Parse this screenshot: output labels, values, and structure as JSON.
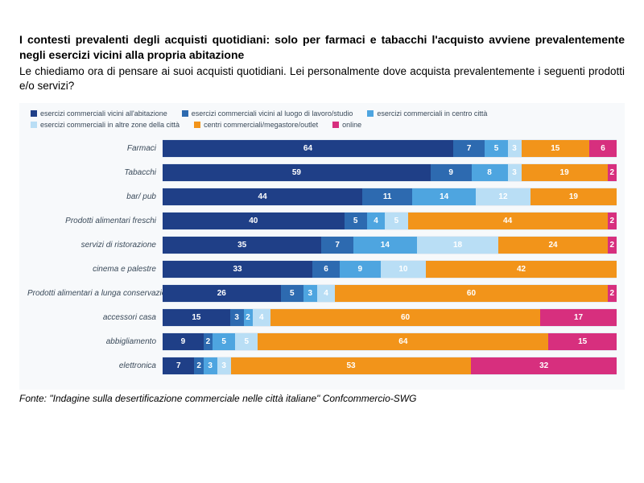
{
  "title": "I contesti prevalenti degli acquisti quotidiani: solo per farmaci e tabacchi l'acquisto avviene prevalentemente negli esercizi vicini alla propria abitazione",
  "subtitle": "Le chiediamo ora di pensare ai suoi acquisti quotidiani. Lei personalmente dove acquista prevalentemente i seguenti prodotti e/o servizi?",
  "source": "Fonte: \"Indagine sulla desertificazione commerciale nelle città italiane\" Confcommercio-SWG",
  "chart": {
    "type": "stacked-horizontal-bar",
    "background_color": "#f7f9fb",
    "grid_color": "#e5ecf3",
    "max_total": 100,
    "label_color": "#3a4a5a",
    "label_fontsize": 10,
    "value_fontsize": 10,
    "value_color": "#ffffff",
    "min_label_value": 2,
    "series": [
      {
        "key": "s1",
        "label": "esercizi commerciali vicini all'abitazione",
        "color": "#1f3f87"
      },
      {
        "key": "s2",
        "label": "esercizi commerciali vicini al luogo di lavoro/studio",
        "color": "#2d6ab0"
      },
      {
        "key": "s3",
        "label": "esercizi commerciali in centro città",
        "color": "#4ea5e0"
      },
      {
        "key": "s4",
        "label": "esercizi commerciali in altre zone della città",
        "color": "#b9def5"
      },
      {
        "key": "s5",
        "label": "centri commerciali/megastore/outlet",
        "color": "#f2941a"
      },
      {
        "key": "s6",
        "label": "online",
        "color": "#d72f7e"
      }
    ],
    "rows": [
      {
        "label": "Farmaci",
        "values": [
          64,
          7,
          5,
          3,
          15,
          6
        ]
      },
      {
        "label": "Tabacchi",
        "values": [
          59,
          9,
          8,
          3,
          19,
          2
        ]
      },
      {
        "label": "bar/ pub",
        "values": [
          44,
          11,
          14,
          12,
          19,
          0
        ]
      },
      {
        "label": "Prodotti alimentari freschi",
        "values": [
          40,
          5,
          4,
          5,
          44,
          2
        ]
      },
      {
        "label": "servizi di ristorazione",
        "values": [
          35,
          7,
          14,
          18,
          24,
          2
        ]
      },
      {
        "label": "cinema e palestre",
        "values": [
          33,
          6,
          9,
          10,
          42,
          0
        ]
      },
      {
        "label": "Prodotti alimentari a lunga conservazione",
        "values": [
          26,
          5,
          3,
          4,
          60,
          2
        ]
      },
      {
        "label": "accessori casa",
        "values": [
          15,
          3,
          2,
          4,
          60,
          17
        ]
      },
      {
        "label": "abbigliamento",
        "values": [
          9,
          2,
          5,
          5,
          64,
          15
        ]
      },
      {
        "label": "elettronica",
        "values": [
          7,
          2,
          3,
          3,
          53,
          32
        ]
      }
    ]
  }
}
